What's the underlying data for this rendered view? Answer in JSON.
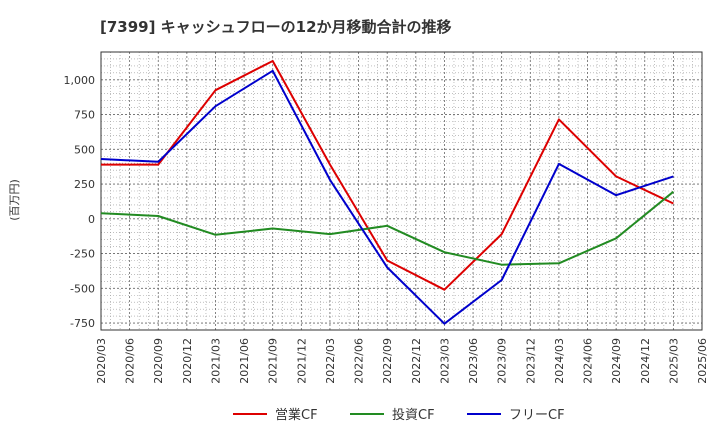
{
  "chart_data": {
    "type": "line",
    "title": "[7399]  キャッシュフローの12か月移動合計の推移",
    "ylabel": "(百万円)",
    "xlabel": "",
    "ylim": [
      -800,
      1200
    ],
    "yticks": [
      -750,
      -500,
      -250,
      0,
      250,
      500,
      750,
      1000
    ],
    "ytick_labels": [
      "-750",
      "-500",
      "-250",
      "0",
      "250",
      "500",
      "750",
      "1,000"
    ],
    "categories": [
      "2020/03",
      "2020/06",
      "2020/09",
      "2020/12",
      "2021/03",
      "2021/06",
      "2021/09",
      "2021/12",
      "2022/03",
      "2022/06",
      "2022/09",
      "2022/12",
      "2023/03",
      "2023/06",
      "2023/09",
      "2023/12",
      "2024/03",
      "2024/06",
      "2024/09",
      "2024/12",
      "2025/03",
      "2025/06"
    ],
    "grid": true,
    "legend_position": "bottom",
    "series": [
      {
        "name": "営業CF",
        "color": "#dd0000",
        "points": [
          [
            "2020/03",
            390
          ],
          [
            "2020/09",
            390
          ],
          [
            "2021/03",
            925
          ],
          [
            "2021/09",
            1135
          ],
          [
            "2022/03",
            390
          ],
          [
            "2022/09",
            -300
          ],
          [
            "2023/03",
            -510
          ],
          [
            "2023/09",
            -110
          ],
          [
            "2024/03",
            715
          ],
          [
            "2024/09",
            305
          ],
          [
            "2025/03",
            110
          ]
        ]
      },
      {
        "name": "投資CF",
        "color": "#228b22",
        "points": [
          [
            "2020/03",
            40
          ],
          [
            "2020/09",
            20
          ],
          [
            "2021/03",
            -115
          ],
          [
            "2021/09",
            -70
          ],
          [
            "2022/03",
            -110
          ],
          [
            "2022/09",
            -50
          ],
          [
            "2023/03",
            -240
          ],
          [
            "2023/09",
            -330
          ],
          [
            "2024/03",
            -320
          ],
          [
            "2024/09",
            -140
          ],
          [
            "2025/03",
            195
          ]
        ]
      },
      {
        "name": "フリーCF",
        "color": "#0000cc",
        "points": [
          [
            "2020/03",
            430
          ],
          [
            "2020/09",
            410
          ],
          [
            "2021/03",
            810
          ],
          [
            "2021/09",
            1065
          ],
          [
            "2022/03",
            280
          ],
          [
            "2022/09",
            -350
          ],
          [
            "2023/03",
            -755
          ],
          [
            "2023/09",
            -440
          ],
          [
            "2024/03",
            395
          ],
          [
            "2024/09",
            170
          ],
          [
            "2025/03",
            305
          ]
        ]
      }
    ]
  }
}
